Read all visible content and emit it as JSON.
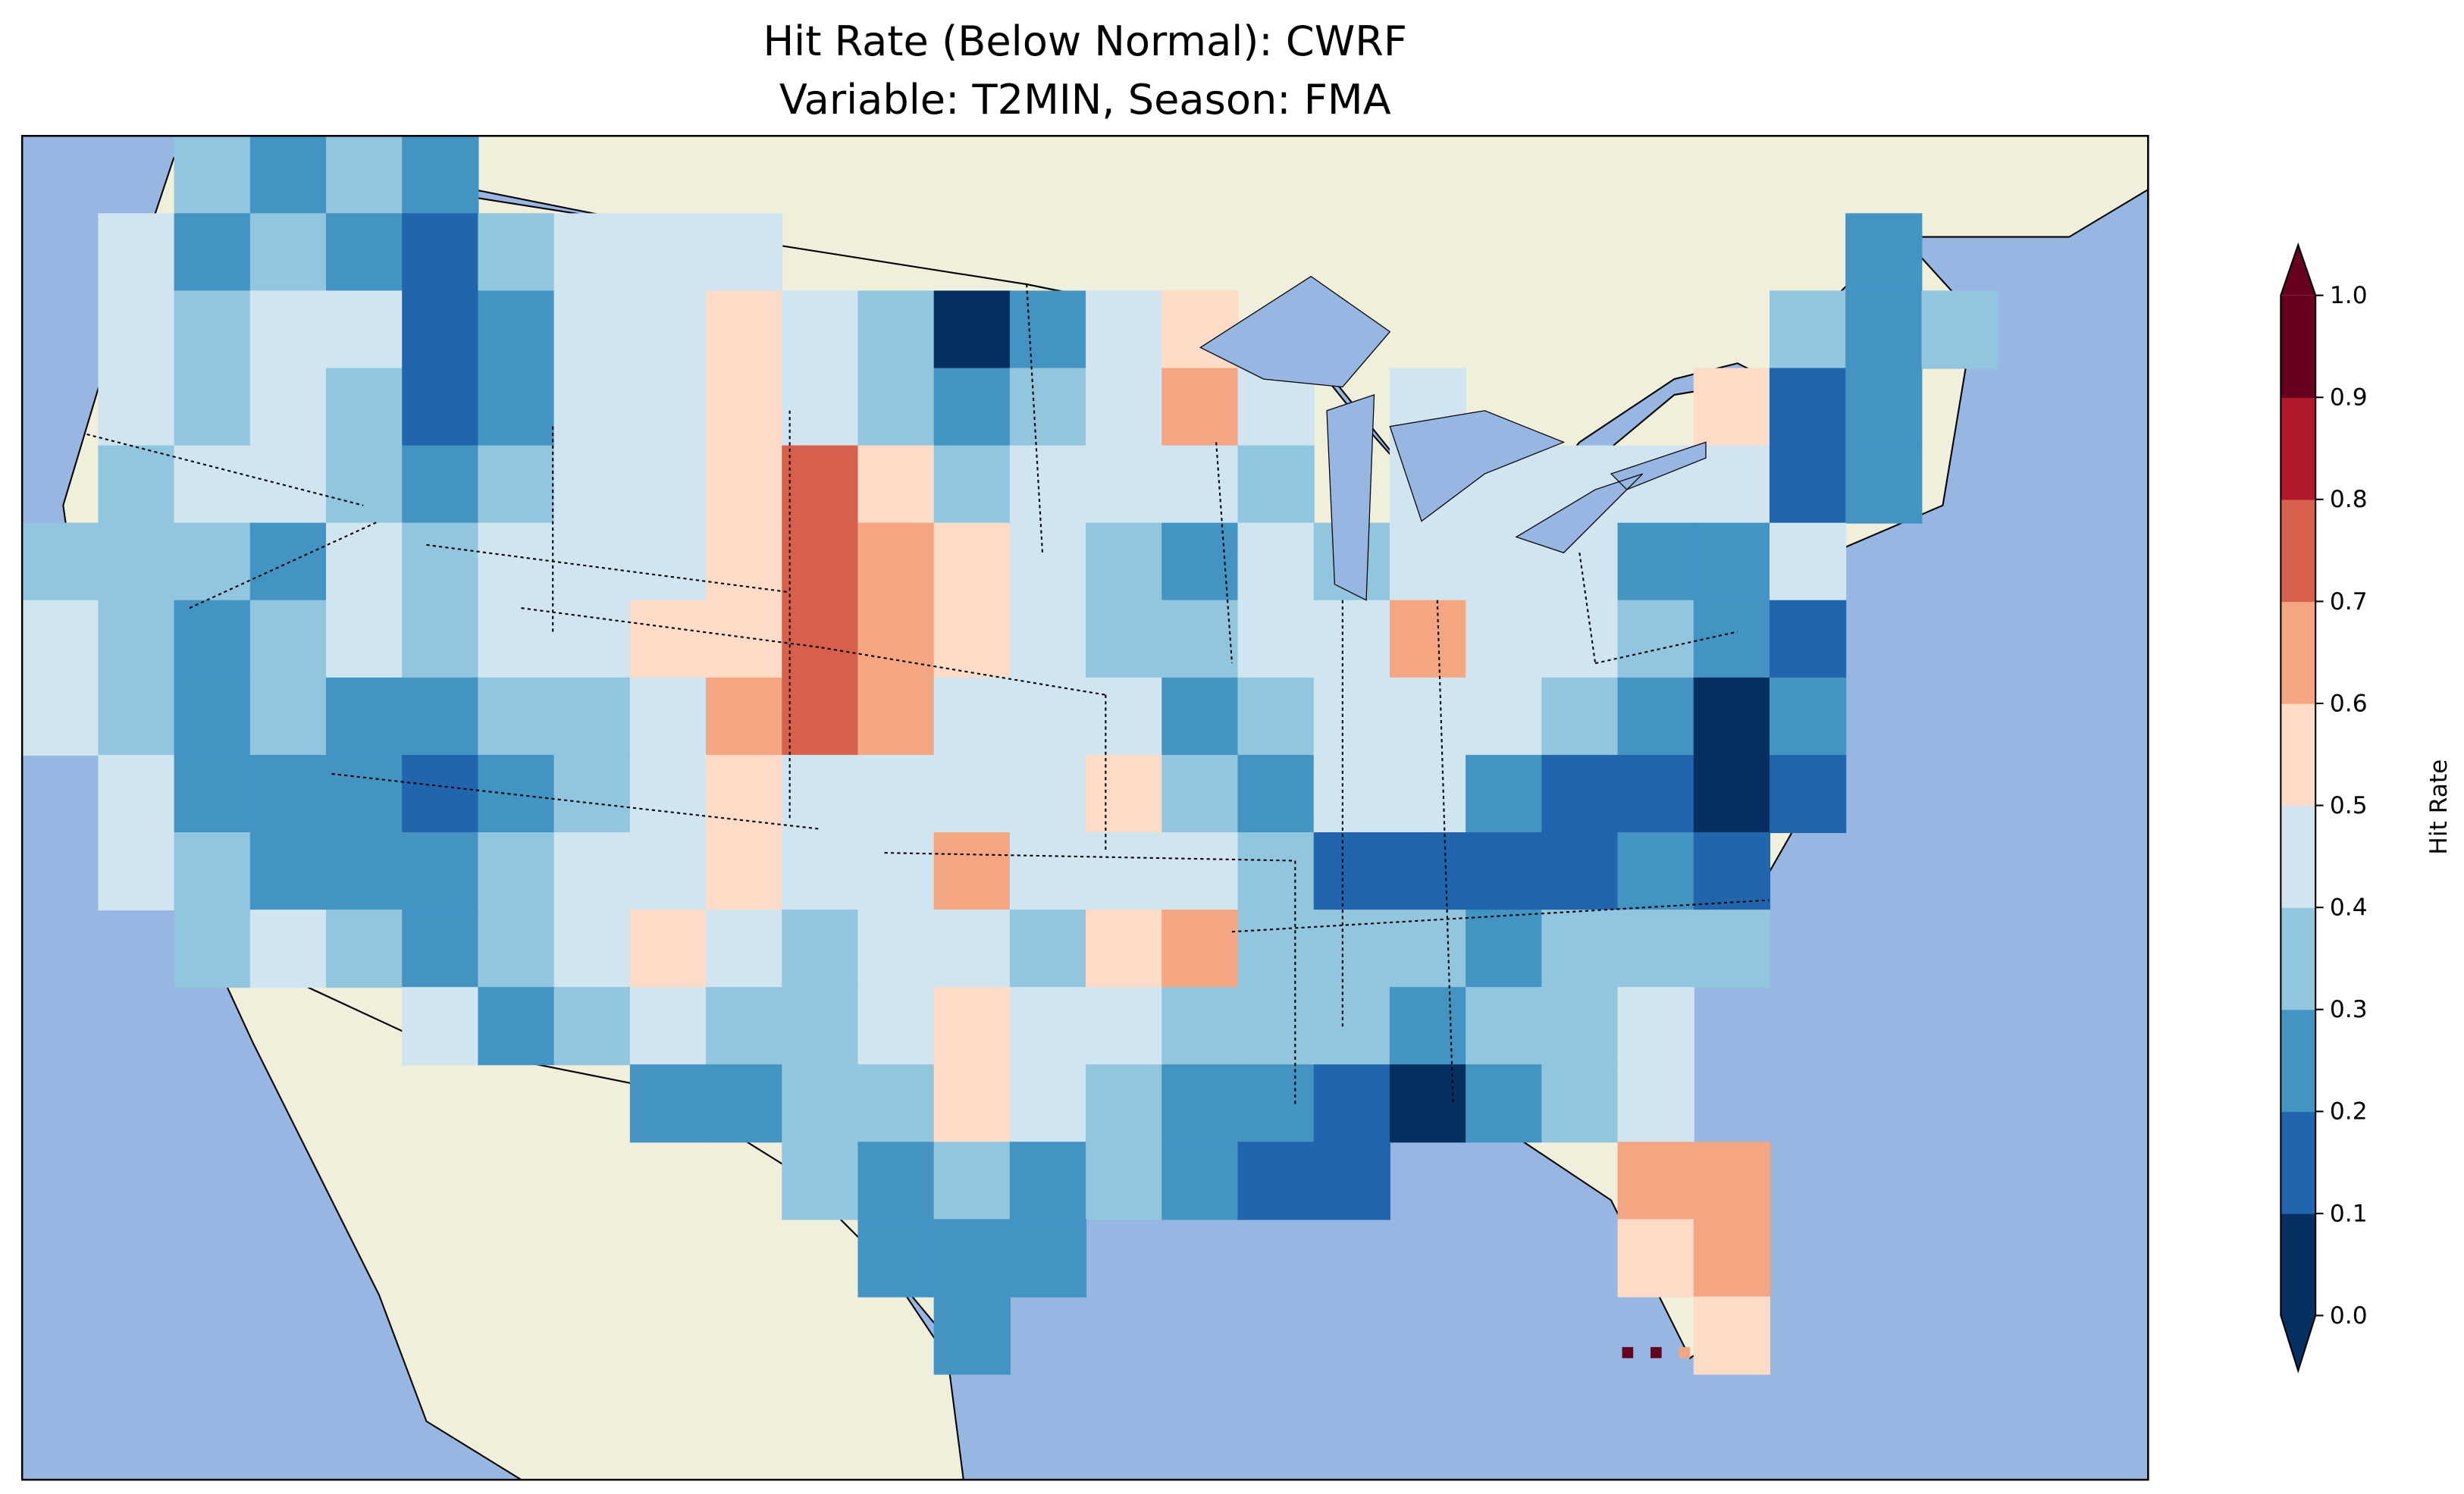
{
  "chart_data": {
    "type": "heatmap",
    "title_line1": "Hit Rate (Below Normal): CWRF",
    "title_line2": "Variable: T2MIN, Season: FMA",
    "colorbar": {
      "label": "Hit Rate",
      "ticks": [
        "0.0",
        "0.1",
        "0.2",
        "0.3",
        "0.4",
        "0.5",
        "0.6",
        "0.7",
        "0.8",
        "0.9",
        "1.0"
      ],
      "range": [
        0,
        1
      ],
      "extend": "both",
      "colors": [
        "#053061",
        "#2166ac",
        "#4393c3",
        "#92c5de",
        "#d1e5f0",
        "#fddbc7",
        "#f4a582",
        "#d6604d",
        "#b2182b",
        "#67001f"
      ]
    },
    "map_colors": {
      "ocean": "#97b6e1",
      "land": "#efefdb"
    },
    "grid_note": "coarse approximation of gridded hit-rate values over CONUS (rows north to south, cols west to east)",
    "grid": [
      [
        null,
        null,
        0.35,
        0.25,
        0.35,
        0.25,
        null,
        null,
        null,
        null,
        null,
        null,
        null,
        null,
        null,
        null,
        null,
        null,
        null,
        null,
        null,
        null,
        null,
        null,
        null,
        null,
        null,
        null
      ],
      [
        null,
        0.45,
        0.25,
        0.35,
        0.25,
        0.15,
        0.35,
        0.45,
        0.45,
        0.45,
        null,
        null,
        null,
        null,
        null,
        null,
        null,
        null,
        null,
        null,
        null,
        null,
        null,
        null,
        0.25,
        null,
        null,
        null
      ],
      [
        null,
        0.45,
        0.35,
        0.45,
        0.45,
        0.15,
        0.25,
        0.45,
        0.45,
        0.55,
        0.45,
        0.35,
        0.05,
        0.25,
        0.45,
        0.55,
        null,
        null,
        null,
        null,
        null,
        null,
        null,
        0.35,
        0.25,
        0.35,
        null,
        null
      ],
      [
        null,
        0.45,
        0.35,
        0.45,
        0.35,
        0.15,
        0.25,
        0.45,
        0.45,
        0.55,
        0.45,
        0.35,
        0.25,
        0.35,
        0.45,
        0.65,
        0.45,
        null,
        0.45,
        null,
        null,
        null,
        0.55,
        0.15,
        0.25,
        null,
        null,
        null
      ],
      [
        null,
        0.35,
        0.45,
        0.45,
        0.35,
        0.25,
        0.35,
        0.45,
        0.45,
        0.55,
        0.75,
        0.55,
        0.35,
        0.45,
        0.45,
        0.45,
        0.35,
        null,
        0.45,
        0.45,
        0.45,
        0.45,
        0.45,
        0.15,
        0.25,
        null,
        null,
        null
      ],
      [
        0.35,
        0.35,
        0.35,
        0.25,
        0.45,
        0.35,
        0.45,
        0.45,
        0.45,
        0.55,
        0.75,
        0.65,
        0.55,
        0.45,
        0.35,
        0.25,
        0.45,
        0.35,
        0.45,
        0.45,
        0.45,
        0.25,
        0.25,
        0.45,
        null,
        null,
        null,
        null
      ],
      [
        0.45,
        0.35,
        0.25,
        0.35,
        0.45,
        0.35,
        0.45,
        0.45,
        0.55,
        0.55,
        0.75,
        0.65,
        0.55,
        0.45,
        0.35,
        0.35,
        0.45,
        0.45,
        0.65,
        0.45,
        0.45,
        0.35,
        0.25,
        0.15,
        null,
        null,
        null,
        null
      ],
      [
        0.45,
        0.35,
        0.25,
        0.35,
        0.25,
        0.25,
        0.35,
        0.35,
        0.45,
        0.65,
        0.75,
        0.65,
        0.45,
        0.45,
        0.45,
        0.25,
        0.35,
        0.45,
        0.45,
        0.45,
        0.35,
        0.25,
        0.05,
        0.25,
        null,
        null,
        null,
        null
      ],
      [
        null,
        0.45,
        0.25,
        0.25,
        0.25,
        0.15,
        0.25,
        0.35,
        0.45,
        0.55,
        0.45,
        0.45,
        0.45,
        0.45,
        0.55,
        0.35,
        0.25,
        0.45,
        0.45,
        0.25,
        0.15,
        0.15,
        0.05,
        0.15,
        null,
        null,
        null,
        null
      ],
      [
        null,
        0.45,
        0.35,
        0.25,
        0.25,
        0.25,
        0.35,
        0.45,
        0.45,
        0.55,
        0.45,
        0.45,
        0.65,
        0.45,
        0.45,
        0.45,
        0.35,
        0.15,
        0.15,
        0.15,
        0.15,
        0.25,
        0.15,
        null,
        null,
        null,
        null,
        null
      ],
      [
        null,
        null,
        0.35,
        0.45,
        0.35,
        0.25,
        0.35,
        0.45,
        0.55,
        0.45,
        0.35,
        0.45,
        0.45,
        0.35,
        0.55,
        0.65,
        0.35,
        0.35,
        0.35,
        0.25,
        0.35,
        0.35,
        0.35,
        null,
        null,
        null,
        null,
        null
      ],
      [
        null,
        null,
        null,
        null,
        null,
        0.45,
        0.25,
        0.35,
        0.45,
        0.35,
        0.35,
        0.45,
        0.55,
        0.45,
        0.45,
        0.35,
        0.35,
        0.35,
        0.25,
        0.35,
        0.35,
        0.45,
        null,
        null,
        null,
        null,
        null,
        null
      ],
      [
        null,
        null,
        null,
        null,
        null,
        null,
        null,
        null,
        0.25,
        0.25,
        0.35,
        0.35,
        0.55,
        0.45,
        0.35,
        0.25,
        0.25,
        0.15,
        0.05,
        0.25,
        0.35,
        0.45,
        null,
        null,
        null,
        null,
        null,
        null
      ],
      [
        null,
        null,
        null,
        null,
        null,
        null,
        null,
        null,
        null,
        null,
        0.35,
        0.25,
        0.35,
        0.25,
        0.35,
        0.25,
        0.15,
        0.15,
        null,
        null,
        null,
        0.65,
        0.65,
        null,
        null,
        null,
        null,
        null
      ],
      [
        null,
        null,
        null,
        null,
        null,
        null,
        null,
        null,
        null,
        null,
        null,
        0.25,
        0.25,
        0.25,
        null,
        null,
        null,
        null,
        null,
        null,
        null,
        0.55,
        0.65,
        null,
        null,
        null,
        null,
        null
      ],
      [
        null,
        null,
        null,
        null,
        null,
        null,
        null,
        null,
        null,
        null,
        null,
        null,
        0.25,
        null,
        null,
        null,
        null,
        null,
        null,
        null,
        null,
        null,
        0.55,
        null,
        null,
        null,
        null,
        null
      ]
    ]
  }
}
